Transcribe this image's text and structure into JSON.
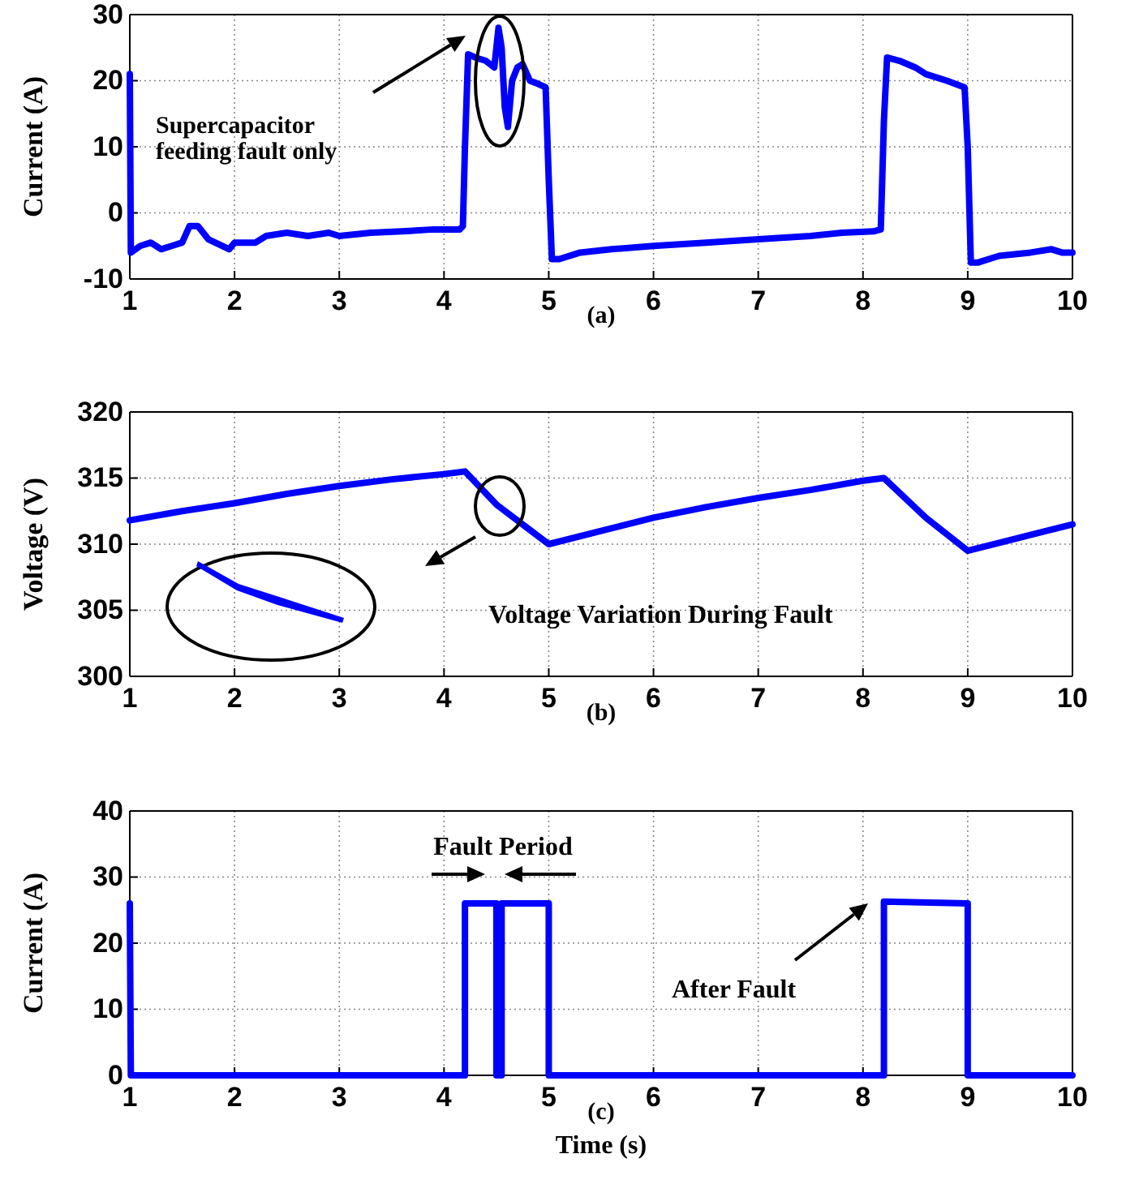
{
  "chart_data": [
    {
      "type": "line",
      "xlabel": "(a)",
      "ylabel": "Current (A)",
      "xlim": [
        1,
        10
      ],
      "ylim": [
        -10,
        30
      ],
      "xticks": [
        1,
        2,
        3,
        4,
        5,
        6,
        7,
        8,
        9,
        10
      ],
      "yticks": [
        -10,
        0,
        10,
        20,
        30
      ],
      "grid": true,
      "x": [
        1.0,
        1.01,
        1.1,
        1.2,
        1.3,
        1.4,
        1.5,
        1.57,
        1.65,
        1.75,
        1.95,
        2.0,
        2.2,
        2.3,
        2.5,
        2.7,
        2.9,
        3.0,
        3.3,
        3.6,
        3.9,
        4.15,
        4.18,
        4.2,
        4.23,
        4.3,
        4.4,
        4.48,
        4.52,
        4.55,
        4.58,
        4.61,
        4.65,
        4.7,
        4.75,
        4.82,
        4.9,
        4.97,
        5.0,
        5.03,
        5.1,
        5.3,
        5.6,
        6.0,
        6.5,
        7.0,
        7.5,
        7.8,
        8.1,
        8.17,
        8.2,
        8.23,
        8.35,
        8.5,
        8.6,
        8.8,
        8.97,
        9.0,
        9.03,
        9.1,
        9.3,
        9.6,
        9.8,
        9.9,
        10.0
      ],
      "series": [
        {
          "color": "#0000ff",
          "values": [
            21,
            -6,
            -5,
            -4.5,
            -5.5,
            -5,
            -4.5,
            -2,
            -2,
            -4,
            -5.5,
            -4.5,
            -4.5,
            -3.5,
            -3,
            -3.5,
            -3,
            -3.5,
            -3,
            -2.8,
            -2.5,
            -2.5,
            -2,
            10,
            24,
            23.5,
            23,
            22,
            28,
            25,
            16,
            13,
            20,
            22,
            22.5,
            20,
            19.5,
            19,
            5,
            -7,
            -7,
            -6,
            -5.5,
            -5,
            -4.5,
            -4,
            -3.5,
            -3,
            -2.8,
            -2.5,
            14,
            23.5,
            23,
            22,
            21,
            20,
            19,
            10,
            -7.5,
            -7.5,
            -6.5,
            -6,
            -5.5,
            -6,
            -6
          ]
        }
      ],
      "annotations": [
        "Supercapacitor feeding fault only"
      ]
    },
    {
      "type": "line",
      "xlabel": "(b)",
      "ylabel": "Voltage (V)",
      "xlim": [
        1,
        10
      ],
      "ylim": [
        300,
        320
      ],
      "xticks": [
        1,
        2,
        3,
        4,
        5,
        6,
        7,
        8,
        9,
        10
      ],
      "yticks": [
        300,
        305,
        310,
        315,
        320
      ],
      "grid": true,
      "x": [
        1,
        1.5,
        2,
        2.5,
        3,
        3.5,
        4,
        4.2,
        4.5,
        4.8,
        5,
        5.5,
        6,
        6.5,
        7,
        7.5,
        8,
        8.2,
        8.6,
        9,
        9.5,
        10
      ],
      "series": [
        {
          "color": "#0000ff",
          "values": [
            311.8,
            312.5,
            313.1,
            313.8,
            314.4,
            314.9,
            315.3,
            315.5,
            313,
            311.2,
            310,
            311,
            312,
            312.8,
            313.5,
            314.1,
            314.8,
            315,
            312,
            309.5,
            310.5,
            311.5
          ]
        }
      ],
      "annotations": [
        "Voltage Variation During Fault"
      ]
    },
    {
      "type": "line",
      "xlabel": "Time (s)",
      "ylabel": "Current (A)",
      "xlim": [
        1,
        10
      ],
      "ylim": [
        0,
        40
      ],
      "xticks": [
        1,
        2,
        3,
        4,
        5,
        6,
        7,
        8,
        9,
        10
      ],
      "yticks": [
        0,
        10,
        20,
        30,
        40
      ],
      "grid": true,
      "x": [
        1,
        1.01,
        4.2,
        4.2,
        4.5,
        4.5,
        4.55,
        4.55,
        5,
        5,
        8.2,
        8.2,
        9,
        9,
        10
      ],
      "series": [
        {
          "color": "#0000ff",
          "values": [
            26,
            0,
            0,
            26,
            26,
            0,
            0,
            26,
            26,
            0,
            0,
            26.3,
            26,
            0,
            0
          ]
        }
      ],
      "annotations": [
        "(c)",
        "Fault Period",
        "After Fault"
      ]
    }
  ]
}
